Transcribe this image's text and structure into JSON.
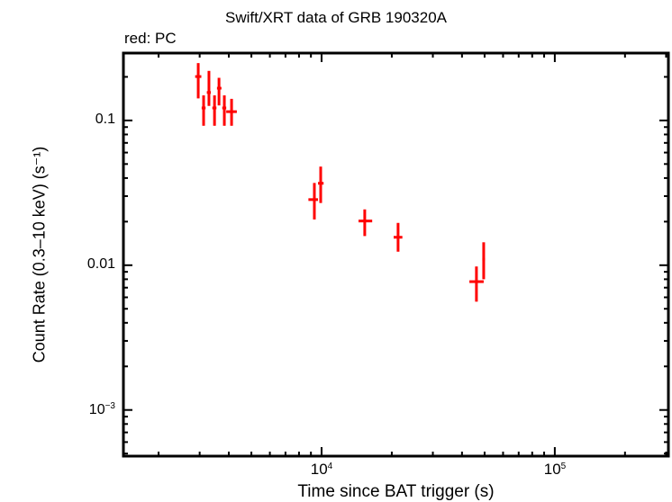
{
  "header": {
    "title": "Swift/XRT data of GRB 190320A",
    "legend_note": "red: PC"
  },
  "axes": {
    "xlabel": "Time since BAT trigger (s)",
    "ylabel": "Count Rate (0.3–10 keV) (s⁻¹)",
    "xticks": [
      {
        "base": "10",
        "exp": "4",
        "value": 10000
      },
      {
        "base": "10",
        "exp": "5",
        "value": 100000
      }
    ],
    "yticks": [
      {
        "label": "0.1",
        "value": 0.1
      },
      {
        "label": "0.01",
        "value": 0.01
      },
      {
        "base": "10",
        "exp": "−3",
        "value": 0.001
      }
    ]
  },
  "colors": {
    "series": "#ff0000",
    "axis": "#000000",
    "background": "#ffffff"
  },
  "chart_data": {
    "type": "scatter",
    "title": "Swift/XRT data of GRB 190320A",
    "xlabel": "Time since BAT trigger (s)",
    "ylabel": "Count Rate (0.3–10 keV) (s^-1)",
    "xscale": "log",
    "yscale": "log",
    "xlim": [
      1413,
      307000
    ],
    "ylim": [
      0.00048,
      0.292
    ],
    "grid": false,
    "legend": "red: PC (top-left annotation)",
    "series": [
      {
        "name": "PC",
        "color": "#ff0000",
        "points": [
          {
            "x": 2958,
            "y": 0.201,
            "xerr": [
              2870,
              3050
            ],
            "yerr": [
              0.142,
              0.249
            ]
          },
          {
            "x": 3119,
            "y": 0.122,
            "xerr": [
              3060,
              3180
            ],
            "yerr": [
              0.0919,
              0.149
            ]
          },
          {
            "x": 3288,
            "y": 0.156,
            "xerr": [
              3220,
              3350
            ],
            "yerr": [
              0.126,
              0.22
            ]
          },
          {
            "x": 3474,
            "y": 0.122,
            "xerr": [
              3400,
              3540
            ],
            "yerr": [
              0.0919,
              0.149
            ]
          },
          {
            "x": 3631,
            "y": 0.167,
            "xerr": [
              3560,
              3720
            ],
            "yerr": [
              0.127,
              0.197
            ]
          },
          {
            "x": 3828,
            "y": 0.122,
            "xerr": [
              3750,
              3900
            ],
            "yerr": [
              0.0919,
              0.149
            ]
          },
          {
            "x": 4111,
            "y": 0.115,
            "xerr": [
              3900,
              4330
            ],
            "yerr": [
              0.0919,
              0.141
            ]
          },
          {
            "x": 9311,
            "y": 0.0284,
            "xerr": [
              8780,
              9650
            ],
            "yerr": [
              0.0207,
              0.037
            ]
          },
          {
            "x": 9911,
            "y": 0.0368,
            "xerr": [
              9650,
              10200
            ],
            "yerr": [
              0.0269,
              0.048
            ]
          },
          {
            "x": 15310,
            "y": 0.0202,
            "xerr": [
              14400,
              16480
            ],
            "yerr": [
              0.0159,
              0.0243
            ]
          },
          {
            "x": 21280,
            "y": 0.0156,
            "xerr": [
              20370,
              22200
            ],
            "yerr": [
              0.0124,
              0.0196
            ]
          },
          {
            "x": 46130,
            "y": 0.0077,
            "xerr": [
              43030,
              49550
            ],
            "yerr": [
              0.0056,
              0.0098
            ]
          },
          {
            "x": 49550,
            "y": 0.011,
            "xerr": [
              48900,
              50200
            ],
            "yerr": [
              0.008,
              0.0144
            ]
          }
        ]
      }
    ]
  }
}
